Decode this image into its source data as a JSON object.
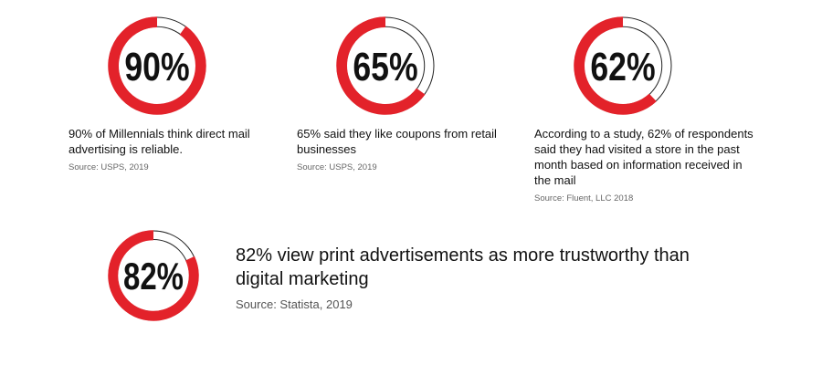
{
  "colors": {
    "accent": "#e3222a",
    "ring_track": "#ffffff",
    "ring_outline": "#222222",
    "text": "#111111",
    "source_text": "#666666"
  },
  "chart_data": [
    {
      "type": "pie",
      "value": 90,
      "label": "90%",
      "description": "90% of Millennials think direct mail advertising is reliable.",
      "source": "Source: USPS, 2019"
    },
    {
      "type": "pie",
      "value": 65,
      "label": "65%",
      "description": "65% said they like coupons from retail businesses",
      "source": "Source: USPS, 2019"
    },
    {
      "type": "pie",
      "value": 62,
      "label": "62%",
      "description": "According to a study, 62% of respondents said they had visited a store in the past month based on information received in the mail",
      "source": "Source: Fluent, LLC 2018"
    },
    {
      "type": "pie",
      "value": 82,
      "label": "82%",
      "description": "82% view print advertisements as more trustworthy than digital marketing",
      "source": "Source: Statista, 2019"
    }
  ]
}
